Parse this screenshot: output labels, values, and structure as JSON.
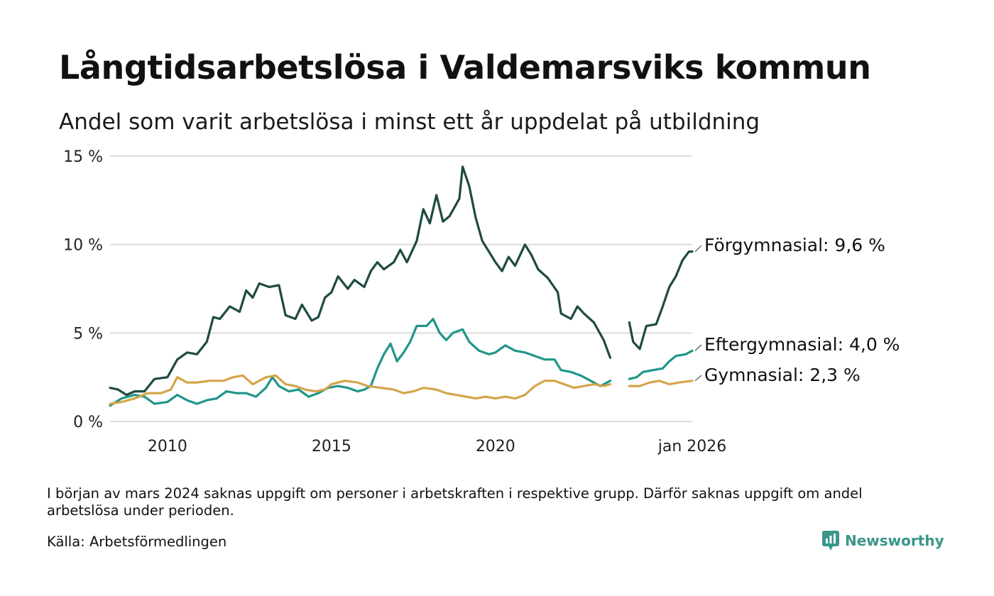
{
  "title": "Långtidsarbetslösa i Valdemarsviks kommun",
  "subtitle": "Andel som varit arbetslösa i minst ett år uppdelat på utbildning",
  "note": "I början av mars 2024 saknas uppgift om personer i arbetskraften i respektive grupp. Därför saknas uppgift om andel arbetslösa under perioden.",
  "source": "Källa: Arbetsförmedlingen",
  "brand": "Newsworthy",
  "colors": {
    "forgymnasial": "#1e4a42",
    "eftergymnasial": "#1f9688",
    "gymnasial": "#d4a54a",
    "grid": "#dcdcdc",
    "brand": "#3a9688"
  },
  "chart_data": {
    "type": "line",
    "ylim": [
      0,
      15
    ],
    "xlim": [
      2008.25,
      2026.0
    ],
    "y_ticks": [
      {
        "value": 0,
        "label": "0 %"
      },
      {
        "value": 5,
        "label": "5 %"
      },
      {
        "value": 10,
        "label": "10 %"
      },
      {
        "value": 15,
        "label": "15 %"
      }
    ],
    "x_ticks": [
      {
        "value": 2010,
        "label": "2010"
      },
      {
        "value": 2015,
        "label": "2015"
      },
      {
        "value": 2020,
        "label": "2020"
      },
      {
        "value": 2026,
        "label": "jan 2026"
      }
    ],
    "gap": [
      2023.75,
      2024.08
    ],
    "series": [
      {
        "key": "forgymnasial",
        "name": "Förgymnasial",
        "end_label": "Förgymnasial: 9,6 %",
        "points": [
          [
            2008.25,
            1.9
          ],
          [
            2008.5,
            1.8
          ],
          [
            2008.75,
            1.5
          ],
          [
            2009.0,
            1.7
          ],
          [
            2009.3,
            1.7
          ],
          [
            2009.6,
            2.4
          ],
          [
            2010.0,
            2.5
          ],
          [
            2010.3,
            3.5
          ],
          [
            2010.6,
            3.9
          ],
          [
            2010.9,
            3.8
          ],
          [
            2011.2,
            4.5
          ],
          [
            2011.4,
            5.9
          ],
          [
            2011.6,
            5.8
          ],
          [
            2011.9,
            6.5
          ],
          [
            2012.2,
            6.2
          ],
          [
            2012.4,
            7.4
          ],
          [
            2012.6,
            7.0
          ],
          [
            2012.8,
            7.8
          ],
          [
            2013.1,
            7.6
          ],
          [
            2013.4,
            7.7
          ],
          [
            2013.6,
            6.0
          ],
          [
            2013.9,
            5.8
          ],
          [
            2014.1,
            6.6
          ],
          [
            2014.4,
            5.7
          ],
          [
            2014.6,
            5.9
          ],
          [
            2014.8,
            7.0
          ],
          [
            2015.0,
            7.3
          ],
          [
            2015.2,
            8.2
          ],
          [
            2015.5,
            7.5
          ],
          [
            2015.7,
            8.0
          ],
          [
            2016.0,
            7.6
          ],
          [
            2016.2,
            8.5
          ],
          [
            2016.4,
            9.0
          ],
          [
            2016.6,
            8.6
          ],
          [
            2016.9,
            9.0
          ],
          [
            2017.1,
            9.7
          ],
          [
            2017.3,
            9.0
          ],
          [
            2017.6,
            10.2
          ],
          [
            2017.8,
            12.0
          ],
          [
            2018.0,
            11.2
          ],
          [
            2018.2,
            12.8
          ],
          [
            2018.4,
            11.3
          ],
          [
            2018.6,
            11.6
          ],
          [
            2018.9,
            12.6
          ],
          [
            2019.0,
            14.4
          ],
          [
            2019.2,
            13.3
          ],
          [
            2019.4,
            11.5
          ],
          [
            2019.6,
            10.2
          ],
          [
            2019.8,
            9.6
          ],
          [
            2020.0,
            9.0
          ],
          [
            2020.2,
            8.5
          ],
          [
            2020.4,
            9.3
          ],
          [
            2020.6,
            8.8
          ],
          [
            2020.9,
            10.0
          ],
          [
            2021.1,
            9.4
          ],
          [
            2021.3,
            8.6
          ],
          [
            2021.6,
            8.1
          ],
          [
            2021.9,
            7.3
          ],
          [
            2022.0,
            6.1
          ],
          [
            2022.3,
            5.8
          ],
          [
            2022.5,
            6.5
          ],
          [
            2022.7,
            6.1
          ],
          [
            2023.0,
            5.6
          ],
          [
            2023.3,
            4.6
          ],
          [
            2023.5,
            3.6
          ],
          [
            2024.08,
            5.6
          ],
          [
            2024.2,
            4.5
          ],
          [
            2024.4,
            4.1
          ],
          [
            2024.6,
            5.4
          ],
          [
            2024.9,
            5.5
          ],
          [
            2025.1,
            6.5
          ],
          [
            2025.3,
            7.6
          ],
          [
            2025.5,
            8.2
          ],
          [
            2025.7,
            9.1
          ],
          [
            2025.9,
            9.6
          ],
          [
            2026.0,
            9.6
          ]
        ]
      },
      {
        "key": "eftergymnasial",
        "name": "Eftergymnasial",
        "end_label": "Eftergymnasial: 4,0 %",
        "points": [
          [
            2008.25,
            0.9
          ],
          [
            2008.6,
            1.3
          ],
          [
            2009.0,
            1.5
          ],
          [
            2009.3,
            1.4
          ],
          [
            2009.6,
            1.0
          ],
          [
            2010.0,
            1.1
          ],
          [
            2010.3,
            1.5
          ],
          [
            2010.6,
            1.2
          ],
          [
            2010.9,
            1.0
          ],
          [
            2011.2,
            1.2
          ],
          [
            2011.5,
            1.3
          ],
          [
            2011.8,
            1.7
          ],
          [
            2012.1,
            1.6
          ],
          [
            2012.4,
            1.6
          ],
          [
            2012.7,
            1.4
          ],
          [
            2013.0,
            1.9
          ],
          [
            2013.2,
            2.5
          ],
          [
            2013.4,
            2.0
          ],
          [
            2013.7,
            1.7
          ],
          [
            2014.0,
            1.8
          ],
          [
            2014.3,
            1.4
          ],
          [
            2014.6,
            1.6
          ],
          [
            2014.9,
            1.9
          ],
          [
            2015.2,
            2.0
          ],
          [
            2015.5,
            1.9
          ],
          [
            2015.8,
            1.7
          ],
          [
            2016.0,
            1.8
          ],
          [
            2016.2,
            2.0
          ],
          [
            2016.4,
            3.0
          ],
          [
            2016.6,
            3.8
          ],
          [
            2016.8,
            4.4
          ],
          [
            2017.0,
            3.4
          ],
          [
            2017.2,
            3.9
          ],
          [
            2017.4,
            4.5
          ],
          [
            2017.6,
            5.4
          ],
          [
            2017.9,
            5.4
          ],
          [
            2018.1,
            5.8
          ],
          [
            2018.3,
            5.0
          ],
          [
            2018.5,
            4.6
          ],
          [
            2018.7,
            5.0
          ],
          [
            2019.0,
            5.2
          ],
          [
            2019.2,
            4.5
          ],
          [
            2019.5,
            4.0
          ],
          [
            2019.8,
            3.8
          ],
          [
            2020.0,
            3.9
          ],
          [
            2020.3,
            4.3
          ],
          [
            2020.6,
            4.0
          ],
          [
            2020.9,
            3.9
          ],
          [
            2021.2,
            3.7
          ],
          [
            2021.5,
            3.5
          ],
          [
            2021.8,
            3.5
          ],
          [
            2022.0,
            2.9
          ],
          [
            2022.3,
            2.8
          ],
          [
            2022.6,
            2.6
          ],
          [
            2022.9,
            2.3
          ],
          [
            2023.2,
            2.0
          ],
          [
            2023.5,
            2.3
          ],
          [
            2024.08,
            2.4
          ],
          [
            2024.3,
            2.5
          ],
          [
            2024.5,
            2.8
          ],
          [
            2024.8,
            2.9
          ],
          [
            2025.1,
            3.0
          ],
          [
            2025.3,
            3.4
          ],
          [
            2025.5,
            3.7
          ],
          [
            2025.8,
            3.8
          ],
          [
            2026.0,
            4.0
          ]
        ]
      },
      {
        "key": "gymnasial",
        "name": "Gymnasial",
        "end_label": "Gymnasial: 2,3 %",
        "points": [
          [
            2008.25,
            1.0
          ],
          [
            2008.6,
            1.1
          ],
          [
            2009.0,
            1.3
          ],
          [
            2009.4,
            1.6
          ],
          [
            2009.8,
            1.6
          ],
          [
            2010.1,
            1.8
          ],
          [
            2010.3,
            2.5
          ],
          [
            2010.6,
            2.2
          ],
          [
            2010.9,
            2.2
          ],
          [
            2011.3,
            2.3
          ],
          [
            2011.7,
            2.3
          ],
          [
            2012.0,
            2.5
          ],
          [
            2012.3,
            2.6
          ],
          [
            2012.6,
            2.1
          ],
          [
            2013.0,
            2.5
          ],
          [
            2013.3,
            2.6
          ],
          [
            2013.6,
            2.1
          ],
          [
            2013.9,
            2.0
          ],
          [
            2014.2,
            1.8
          ],
          [
            2014.5,
            1.7
          ],
          [
            2014.8,
            1.8
          ],
          [
            2015.0,
            2.1
          ],
          [
            2015.4,
            2.3
          ],
          [
            2015.8,
            2.2
          ],
          [
            2016.1,
            2.0
          ],
          [
            2016.5,
            1.9
          ],
          [
            2016.9,
            1.8
          ],
          [
            2017.2,
            1.6
          ],
          [
            2017.5,
            1.7
          ],
          [
            2017.8,
            1.9
          ],
          [
            2018.2,
            1.8
          ],
          [
            2018.5,
            1.6
          ],
          [
            2018.8,
            1.5
          ],
          [
            2019.1,
            1.4
          ],
          [
            2019.4,
            1.3
          ],
          [
            2019.7,
            1.4
          ],
          [
            2020.0,
            1.3
          ],
          [
            2020.3,
            1.4
          ],
          [
            2020.6,
            1.3
          ],
          [
            2020.9,
            1.5
          ],
          [
            2021.2,
            2.0
          ],
          [
            2021.5,
            2.3
          ],
          [
            2021.8,
            2.3
          ],
          [
            2022.1,
            2.1
          ],
          [
            2022.4,
            1.9
          ],
          [
            2022.7,
            2.0
          ],
          [
            2023.0,
            2.1
          ],
          [
            2023.3,
            2.0
          ],
          [
            2023.5,
            2.1
          ],
          [
            2024.08,
            2.0
          ],
          [
            2024.4,
            2.0
          ],
          [
            2024.7,
            2.2
          ],
          [
            2025.0,
            2.3
          ],
          [
            2025.3,
            2.1
          ],
          [
            2025.6,
            2.2
          ],
          [
            2026.0,
            2.3
          ]
        ]
      }
    ]
  }
}
